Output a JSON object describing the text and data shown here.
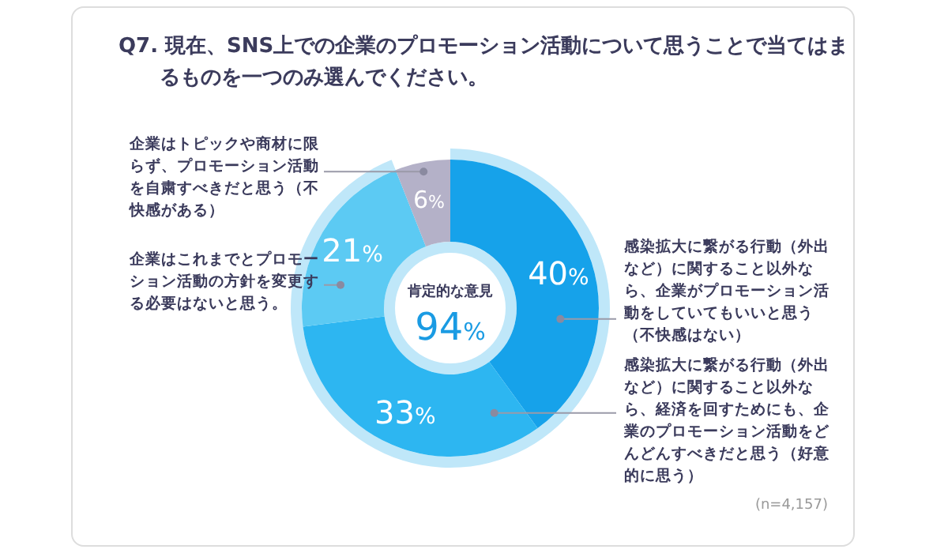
{
  "chart_data": {
    "type": "donut",
    "title": "Q7. 現在、SNS上での企業のプロモーション活動について思うことで当てはまるものを一つのみ選んでください。",
    "categories": [
      "感染拡大に繋がる行動（外出など）に関すること以外なら、企業がプロモーション活動をしていてもいいと思う（不快感はない）",
      "感染拡大に繋がる行動（外出など）に関すること以外なら、経済を回すためにも、企業のプロモーション活動をどんどんすべきだと思う（好意的に思う）",
      "企業はこれまでとプロモーション活動の方針を変更する必要はないと思う。",
      "企業はトピックや商材に限らず、プロモーション活動を自粛すべきだと思う（不快感がある）"
    ],
    "values": [
      40,
      33,
      21,
      6
    ],
    "colors": [
      "#16a2ea",
      "#2db6f1",
      "#5ccaf3",
      "#b4b1c8"
    ],
    "value_labels": [
      "40%",
      "33%",
      "21%",
      "6%"
    ],
    "annotations": [
      "肯定的な意見",
      "94%",
      "(n=4,157)"
    ]
  }
}
